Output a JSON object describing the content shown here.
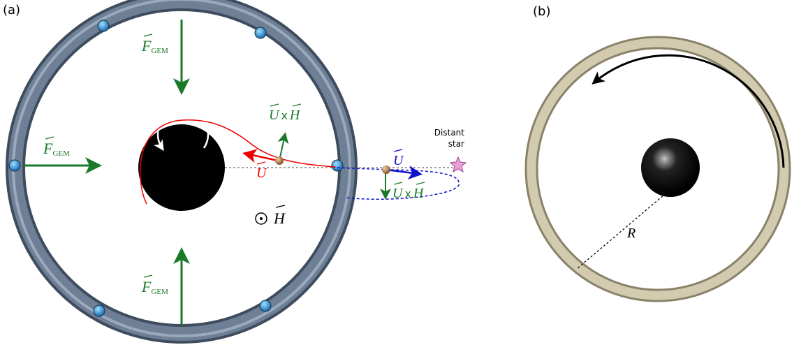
{
  "panel_a": {
    "label": "(a)",
    "force_labels": [
      {
        "symbol": "F",
        "subscript": "GEM"
      },
      {
        "symbol": "F",
        "subscript": "GEM"
      },
      {
        "symbol": "F",
        "subscript": "GEM"
      }
    ],
    "cross_labels": [
      {
        "left": "U",
        "op": "x",
        "right": "H"
      },
      {
        "left": "U",
        "op": "x",
        "right": "H"
      }
    ],
    "velocity_labels": [
      "U",
      "U"
    ],
    "field_label": "H",
    "star_label": [
      "Distant",
      "star"
    ]
  },
  "panel_b": {
    "label": "(b)",
    "radius_label": "R"
  }
}
